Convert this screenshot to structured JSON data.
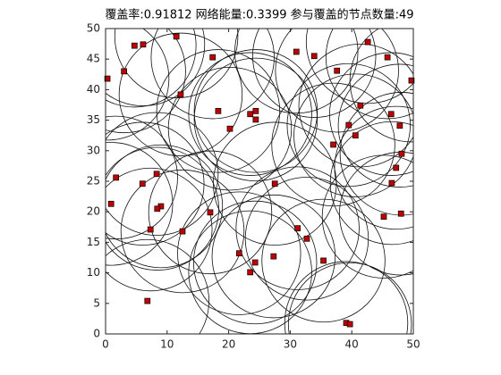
{
  "chart_data": {
    "type": "scatter",
    "title": "覆盖率:0.91812  网络能量:0.3399  参与覆盖的节点数量:49",
    "x": [
      0.3,
      0.9,
      1.7,
      3.0,
      4.7,
      6.1,
      11.5,
      17.4,
      12.2,
      18.3,
      20.2,
      23.5,
      24.4,
      24.4,
      31.0,
      33.9,
      37.6,
      42.6,
      45.8,
      49.7,
      41.4,
      39.5,
      40.6,
      46.4,
      47.8,
      37.0,
      48.1,
      47.2,
      46.5,
      48.0,
      45.2,
      8.3,
      6.0,
      27.5,
      9.0,
      8.4,
      7.3,
      12.5,
      17.0,
      31.2,
      32.7,
      35.4,
      21.7,
      24.3,
      23.5,
      27.3,
      6.8,
      39.1,
      39.7
    ],
    "values": [
      41.8,
      21.3,
      25.6,
      43.0,
      47.2,
      47.4,
      48.7,
      45.3,
      39.2,
      36.5,
      33.6,
      36.0,
      36.5,
      35.1,
      46.2,
      45.5,
      43.1,
      47.8,
      45.3,
      41.5,
      37.4,
      34.2,
      32.5,
      36.0,
      34.1,
      31.0,
      29.5,
      27.2,
      24.7,
      19.7,
      19.2,
      26.2,
      24.6,
      24.6,
      20.9,
      20.5,
      17.1,
      16.8,
      19.9,
      17.3,
      15.6,
      12.0,
      13.2,
      11.7,
      10.1,
      12.7,
      5.4,
      1.8,
      1.6
    ],
    "color": "#c00000",
    "xlim": [
      0,
      50
    ],
    "ylim": [
      0,
      50
    ],
    "xticks": [
      0,
      10,
      20,
      30,
      40,
      50
    ],
    "yticks": [
      0,
      5,
      10,
      15,
      20,
      25,
      30,
      35,
      40,
      45,
      50
    ]
  }
}
